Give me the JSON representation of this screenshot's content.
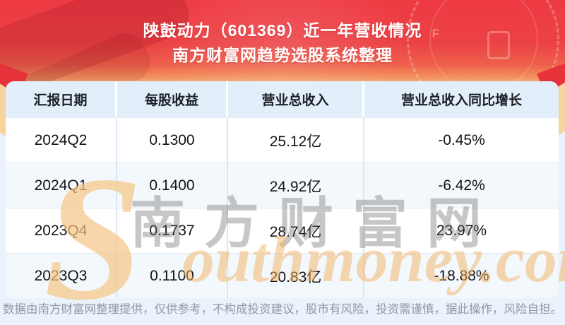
{
  "chart_data": {
    "type": "table",
    "title": "陕鼓动力（601369）近一年营收情况",
    "subtitle": "南方财富网趋势选股系统整理",
    "columns": [
      "汇报日期",
      "每股收益",
      "营业总收入",
      "营业总收入同比增长"
    ],
    "rows": [
      [
        "2024Q2",
        "0.1300",
        "25.12亿",
        "-0.45%"
      ],
      [
        "2024Q1",
        "0.1400",
        "24.92亿",
        "-6.42%"
      ],
      [
        "2023Q4",
        "0.1737",
        "28.74亿",
        "23.97%"
      ],
      [
        "2023Q3",
        "0.1100",
        "20.83亿",
        "-18.88%"
      ]
    ]
  },
  "banner": {
    "gauge_label_f": "F"
  },
  "watermark": {
    "swoosh": "S",
    "cn": "南方财富网",
    "en": "outhmoney.com"
  },
  "footer": {
    "disclaimer": "数据由南方财富网整理提供，仅供参考，不构成投资建议，股市有风险，投资需谨慎，据此操作，风险自担。"
  },
  "colors": {
    "banner_red_top": "#ee3a43",
    "banner_red_mid": "#ec4245",
    "banner_cream_bottom": "#f5e3c2",
    "page_background": "#eaf2fb",
    "header_row_bg": "#e2eefa",
    "row_alt_bg": "#f3f8fc",
    "row_bg": "#ffffff",
    "cell_text": "#121418",
    "footer_text": "#8e98a6",
    "watermark_orange": "#f2b465",
    "watermark_gray": "#6f6f6f",
    "ribbon_red": "#e7323b",
    "ribbon_cream": "#f7d49d"
  }
}
